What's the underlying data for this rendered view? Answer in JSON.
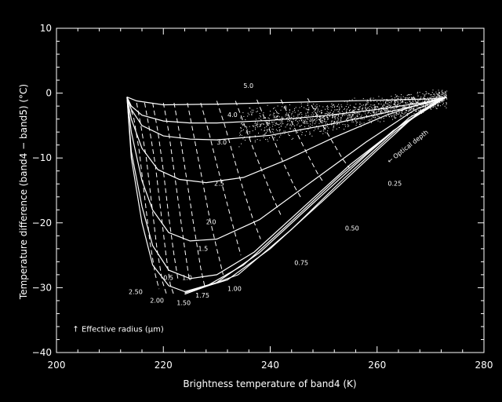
{
  "colors": {
    "background": "#000000",
    "foreground": "#ffffff"
  },
  "chart_data": {
    "type": "line",
    "xlabel": "Brightness temperature of band4 (K)",
    "ylabel": "Temperature difference (band4 − band5) (°C)",
    "xlim": [
      200,
      280
    ],
    "ylim": [
      -40,
      10
    ],
    "x_ticks": [
      "200",
      "220",
      "240",
      "260",
      "280"
    ],
    "y_ticks": [
      "10",
      "0",
      "−10",
      "−20",
      "−30",
      "−40"
    ],
    "grid": false,
    "series": [
      {
        "name": "Optical depth",
        "style": "solid",
        "lines": [
          {
            "label": "5.0",
            "label_at": [
              235.0,
              0.8
            ],
            "points": [
              [
                213.2,
                -0.6
              ],
              [
                215,
                -1.2
              ],
              [
                220,
                -1.8
              ],
              [
                230,
                -1.7
              ],
              [
                240,
                -1.5
              ],
              [
                250,
                -1.3
              ],
              [
                260,
                -1.1
              ],
              [
                270,
                -0.9
              ],
              [
                273,
                -0.6
              ]
            ]
          },
          {
            "label": "4.0",
            "label_at": [
              232.0,
              -3.7
            ],
            "points": [
              [
                213.2,
                -0.6
              ],
              [
                214,
                -2.0
              ],
              [
                216,
                -3.4
              ],
              [
                220,
                -4.3
              ],
              [
                225,
                -4.6
              ],
              [
                230,
                -4.6
              ],
              [
                240,
                -4.2
              ],
              [
                250,
                -3.5
              ],
              [
                260,
                -2.5
              ],
              [
                270,
                -1.3
              ],
              [
                273,
                -0.6
              ]
            ]
          },
          {
            "label": "3.0",
            "label_at": [
              230.0,
              -7.9
            ],
            "points": [
              [
                213.2,
                -0.6
              ],
              [
                214,
                -2.5
              ],
              [
                216,
                -5.0
              ],
              [
                220,
                -6.6
              ],
              [
                225,
                -7.1
              ],
              [
                230,
                -7.2
              ],
              [
                240,
                -6.5
              ],
              [
                250,
                -5.0
              ],
              [
                260,
                -3.3
              ],
              [
                270,
                -1.4
              ],
              [
                273,
                -0.6
              ]
            ]
          },
          {
            "label": "2.5",
            "label_at": [
              229.5,
              -14.3
            ],
            "points": [
              [
                213.2,
                -0.6
              ],
              [
                214,
                -4.0
              ],
              [
                216,
                -8.5
              ],
              [
                219,
                -11.8
              ],
              [
                223,
                -13.3
              ],
              [
                228,
                -13.8
              ],
              [
                235,
                -13.0
              ],
              [
                243,
                -10.3
              ],
              [
                252,
                -6.8
              ],
              [
                262,
                -3.3
              ],
              [
                270,
                -1.2
              ],
              [
                273,
                -0.6
              ]
            ]
          },
          {
            "label": "2.0",
            "label_at": [
              228.0,
              -20.2
            ],
            "points": [
              [
                213.2,
                -0.6
              ],
              [
                214,
                -6.0
              ],
              [
                216,
                -13.5
              ],
              [
                218,
                -18.0
              ],
              [
                221,
                -21.5
              ],
              [
                225,
                -22.8
              ],
              [
                230,
                -22.5
              ],
              [
                238,
                -19.5
              ],
              [
                248,
                -13.5
              ],
              [
                258,
                -7.5
              ],
              [
                267,
                -2.6
              ],
              [
                273,
                -0.6
              ]
            ]
          },
          {
            "label": "1.5",
            "label_at": [
              226.5,
              -24.3
            ],
            "points": [
              [
                213.2,
                -0.6
              ],
              [
                214,
                -9.0
              ],
              [
                216,
                -17.5
              ],
              [
                218,
                -23.5
              ],
              [
                221,
                -27.3
              ],
              [
                225,
                -28.6
              ],
              [
                230,
                -28.0
              ],
              [
                237,
                -24.5
              ],
              [
                245,
                -18.5
              ],
              [
                255,
                -11.0
              ],
              [
                265,
                -4.6
              ],
              [
                273,
                -0.6
              ]
            ]
          },
          {
            "label": "1.00",
            "label_at": [
              232.0,
              -30.5
            ],
            "points": [
              [
                213.2,
                -0.6
              ],
              [
                214,
                -10.0
              ],
              [
                216,
                -20.0
              ],
              [
                218,
                -26.5
              ],
              [
                221,
                -29.7
              ],
              [
                224,
                -30.6
              ],
              [
                228,
                -29.8
              ],
              [
                235,
                -26.5
              ],
              [
                243,
                -20.5
              ],
              [
                253,
                -12.8
              ],
              [
                263,
                -5.8
              ],
              [
                273,
                -0.6
              ]
            ]
          },
          {
            "label": "0.75",
            "label_at": [
              244.5,
              -26.5
            ],
            "points": [
              [
                224,
                -30.6
              ],
              [
                230,
                -29.2
              ],
              [
                238,
                -24.6
              ],
              [
                248,
                -17.0
              ],
              [
                258,
                -9.5
              ],
              [
                266,
                -3.8
              ],
              [
                273,
                -0.6
              ]
            ]
          },
          {
            "label": "0.50",
            "label_at": [
              254.0,
              -21.2
            ],
            "points": [
              [
                224,
                -30.8
              ],
              [
                232,
                -28.8
              ],
              [
                240,
                -24.0
              ],
              [
                250,
                -16.5
              ],
              [
                260,
                -8.8
              ],
              [
                268,
                -2.8
              ],
              [
                273,
                -0.6
              ]
            ]
          },
          {
            "label": "0.25",
            "label_at": [
              262.0,
              -14.3
            ],
            "points": [
              [
                224,
                -31.0
              ],
              [
                234,
                -28.0
              ],
              [
                244,
                -21.0
              ],
              [
                254,
                -13.0
              ],
              [
                263,
                -6.2
              ],
              [
                270,
                -1.8
              ],
              [
                273,
                -0.6
              ]
            ]
          }
        ]
      },
      {
        "name": "Effective radius (μm)",
        "style": "dashed",
        "lines": [
          {
            "label": "2.50",
            "label_at": [
              213.5,
              -31.0
            ],
            "points": [
              [
                213.6,
                -1.5
              ],
              [
                214.5,
                -4
              ],
              [
                215.5,
                -9
              ],
              [
                216.5,
                -16
              ],
              [
                217.5,
                -23
              ],
              [
                218.5,
                -28
              ],
              [
                219.2,
                -30.2
              ]
            ]
          },
          {
            "label": "2.00",
            "label_at": [
              217.5,
              -32.3
            ],
            "points": [
              [
                215.0,
                -1.5
              ],
              [
                215.8,
                -5
              ],
              [
                216.8,
                -10
              ],
              [
                217.8,
                -17
              ],
              [
                218.8,
                -24
              ],
              [
                219.8,
                -29
              ],
              [
                220.6,
                -31.0
              ]
            ]
          },
          {
            "label": "1.50",
            "label_at": [
              222.5,
              -32.7
            ],
            "points": [
              [
                216.5,
                -1.5
              ],
              [
                217.5,
                -6
              ],
              [
                218.5,
                -11
              ],
              [
                219.5,
                -18
              ],
              [
                220.5,
                -25
              ],
              [
                221.3,
                -29.5
              ],
              [
                222.0,
                -31.2
              ]
            ]
          },
          {
            "label": "0.5",
            "label_at": [
              220.0,
              -28.8
            ],
            "points": [
              [
                218.0,
                -1.5
              ],
              [
                219.0,
                -6
              ],
              [
                220.0,
                -12
              ],
              [
                221.0,
                -19
              ],
              [
                222.0,
                -25
              ],
              [
                222.8,
                -29
              ]
            ]
          },
          {
            "label": "1.0",
            "label_at": [
              223.5,
              -28.8
            ],
            "points": [
              [
                220.0,
                -1.5
              ],
              [
                221.0,
                -6
              ],
              [
                222.0,
                -12
              ],
              [
                223.0,
                -18
              ],
              [
                224.0,
                -24
              ],
              [
                224.8,
                -28.5
              ]
            ]
          },
          {
            "label": "1.75",
            "label_at": [
              226.0,
              -31.5
            ],
            "points": [
              [
                222.0,
                -1.5
              ],
              [
                223.2,
                -7
              ],
              [
                224.5,
                -14
              ],
              [
                225.8,
                -21
              ],
              [
                227.0,
                -27
              ],
              [
                227.8,
                -30
              ]
            ]
          },
          {
            "label": "",
            "label_at": null,
            "points": [
              [
                224.5,
                -1.5
              ],
              [
                225.8,
                -7
              ],
              [
                227.2,
                -13
              ],
              [
                228.6,
                -19
              ],
              [
                230.0,
                -24
              ],
              [
                231.2,
                -28
              ]
            ]
          },
          {
            "label": "",
            "label_at": null,
            "points": [
              [
                227.0,
                -1.5
              ],
              [
                228.5,
                -6
              ],
              [
                230.0,
                -11
              ],
              [
                231.6,
                -16
              ],
              [
                233.2,
                -21
              ],
              [
                234.5,
                -25
              ]
            ]
          },
          {
            "label": "",
            "label_at": null,
            "points": [
              [
                230.0,
                -1.2
              ],
              [
                231.5,
                -5
              ],
              [
                233.2,
                -10
              ],
              [
                235.0,
                -15
              ],
              [
                236.8,
                -19.5
              ],
              [
                238.2,
                -22.5
              ]
            ]
          },
          {
            "label": "",
            "label_at": null,
            "points": [
              [
                233.5,
                -1.2
              ],
              [
                235.0,
                -4.5
              ],
              [
                236.8,
                -8.5
              ],
              [
                238.7,
                -12.5
              ],
              [
                240.6,
                -16.3
              ],
              [
                242.0,
                -18.8
              ]
            ]
          },
          {
            "label": "",
            "label_at": null,
            "points": [
              [
                237.5,
                -1.0
              ],
              [
                239.0,
                -4.0
              ],
              [
                240.8,
                -7.5
              ],
              [
                242.6,
                -11.0
              ],
              [
                244.4,
                -14.2
              ],
              [
                245.8,
                -16.2
              ]
            ]
          },
          {
            "label": "",
            "label_at": null,
            "points": [
              [
                242.0,
                -1.0
              ],
              [
                243.5,
                -3.5
              ],
              [
                245.2,
                -6.5
              ],
              [
                247.0,
                -9.5
              ],
              [
                248.8,
                -12.3
              ],
              [
                250.0,
                -13.8
              ]
            ]
          },
          {
            "label": "",
            "label_at": null,
            "points": [
              [
                247.0,
                -0.8
              ],
              [
                248.5,
                -3.0
              ],
              [
                250.2,
                -5.5
              ],
              [
                252.0,
                -8.0
              ],
              [
                253.6,
                -10.2
              ],
              [
                254.8,
                -11.5
              ]
            ]
          }
        ]
      }
    ],
    "observed_points": {
      "description_region": "dense scatter of observed pixels",
      "x_range": [
        234,
        273
      ],
      "y_center_line": [
        [
          234,
          -5.0
        ],
        [
          240,
          -4.5
        ],
        [
          248,
          -4.0
        ],
        [
          256,
          -3.0
        ],
        [
          264,
          -2.0
        ],
        [
          272,
          -0.8
        ]
      ],
      "y_spread": 3.5
    },
    "annotations": [
      {
        "text": "← Optical depth",
        "x": 266,
        "y": -8.5,
        "angle": -38
      },
      {
        "text": "Effective radius (μm)",
        "arrow": "↑",
        "x": 203,
        "y": -36.8
      }
    ]
  }
}
